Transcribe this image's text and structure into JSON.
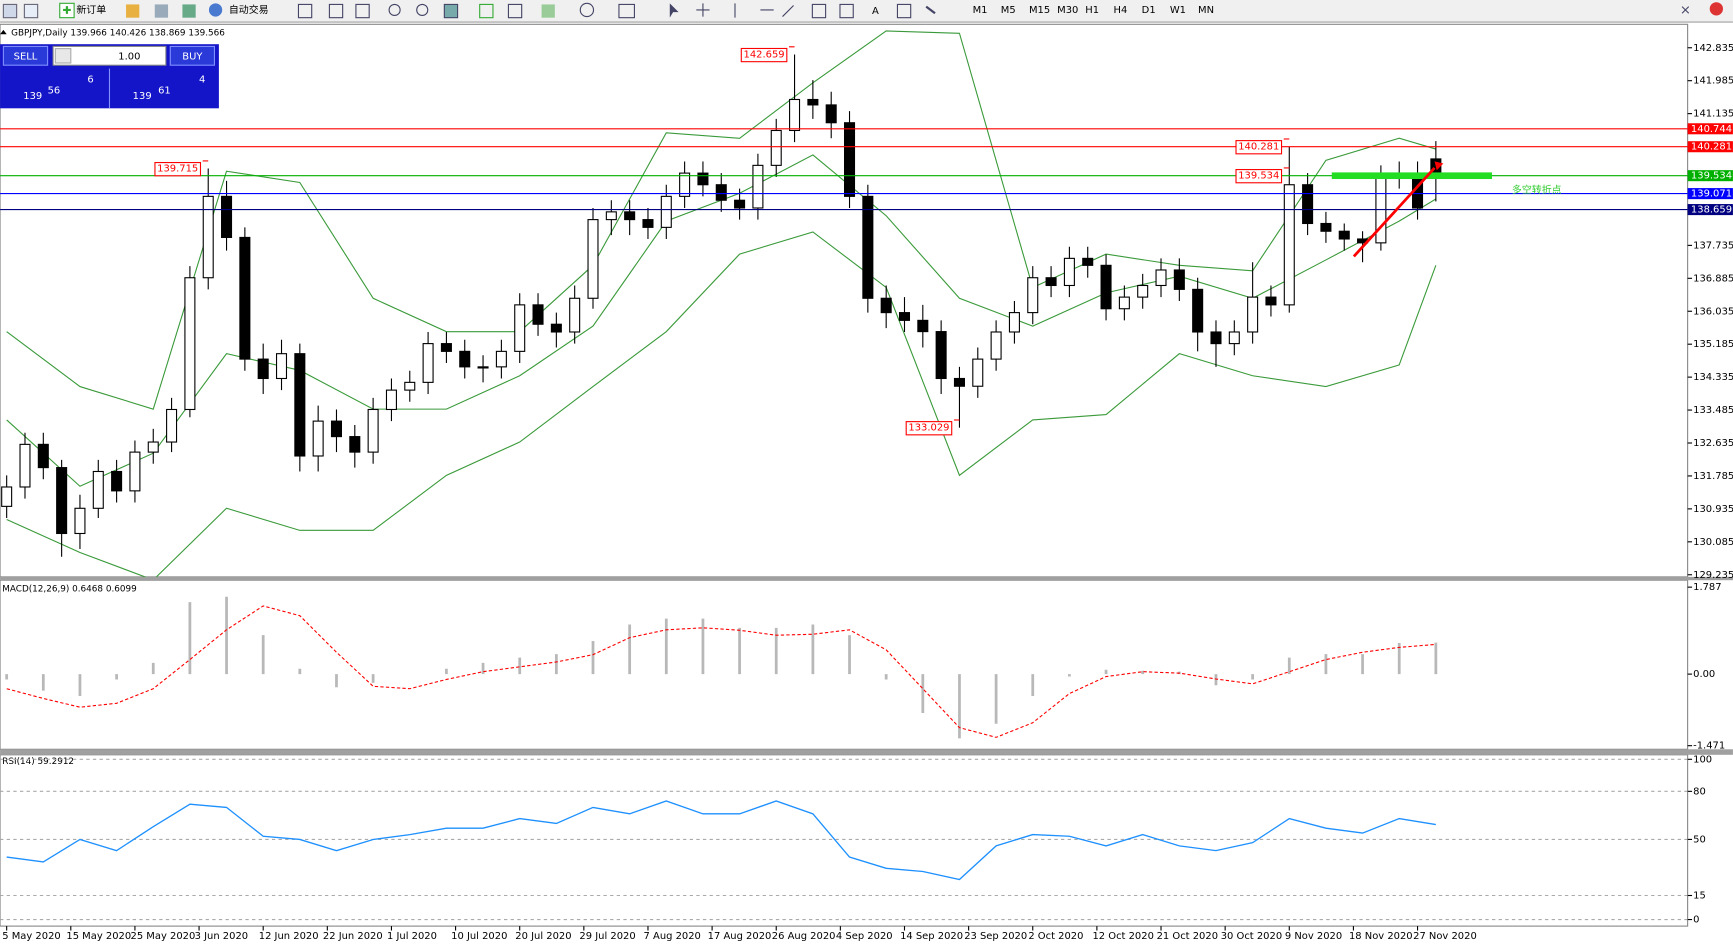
{
  "toolbar": {
    "buttons": [
      "新订单",
      "自动交易"
    ],
    "timeframes": [
      "M1",
      "M5",
      "M15",
      "M30",
      "H1",
      "H4",
      "D1",
      "W1",
      "MN"
    ]
  },
  "trade_panel": {
    "sell": "SELL",
    "lots": "1.00",
    "buy": "BUY",
    "bid": {
      "big": "139",
      "main": "56",
      "pip": "6"
    },
    "ask": {
      "big": "139",
      "main": "61",
      "pip": "4"
    }
  },
  "chart_data": [
    {
      "type": "candlestick",
      "title": "GBPJPY,Daily 139.966 140.426 138.869 139.566",
      "x": [
        0,
        1,
        2,
        3,
        4,
        5,
        6,
        7,
        8,
        9,
        10,
        11,
        12,
        13,
        14,
        15,
        16,
        17,
        18,
        19,
        20,
        21,
        22,
        23,
        24,
        25,
        26,
        27,
        28,
        29,
        30,
        31,
        32,
        33,
        34,
        35,
        36,
        37,
        38,
        39,
        40,
        41,
        42,
        43,
        44,
        45,
        46,
        47,
        48,
        49,
        50,
        51,
        52,
        53,
        54,
        55,
        56,
        57,
        58,
        59,
        60,
        61,
        62,
        63,
        64,
        65,
        66,
        67,
        68,
        69,
        70,
        71,
        72,
        73,
        74,
        75,
        76,
        77,
        78
      ],
      "open": [
        131.0,
        131.5,
        132.6,
        132.0,
        130.3,
        130.95,
        131.9,
        131.4,
        132.4,
        132.66,
        133.5,
        136.9,
        139.0,
        137.94,
        134.8,
        134.3,
        134.94,
        132.3,
        133.2,
        132.8,
        132.4,
        133.5,
        134.0,
        134.2,
        135.2,
        135.0,
        134.6,
        134.6,
        135.0,
        136.2,
        135.7,
        135.5,
        136.37,
        138.4,
        138.6,
        138.4,
        138.2,
        139.0,
        139.6,
        139.3,
        138.9,
        138.7,
        139.8,
        140.7,
        141.5,
        141.36,
        140.9,
        139.0,
        136.37,
        136.0,
        135.8,
        135.51,
        134.3,
        134.1,
        134.8,
        135.5,
        136.0,
        136.9,
        136.7,
        137.4,
        137.22,
        136.1,
        136.4,
        136.7,
        137.1,
        136.6,
        135.5,
        135.2,
        135.5,
        136.4,
        136.2,
        139.3,
        138.3,
        138.1,
        137.9,
        137.8,
        139.5,
        139.6,
        139.966
      ],
      "high": [
        131.8,
        132.9,
        132.9,
        132.2,
        131.3,
        132.2,
        132.2,
        132.7,
        133.0,
        133.8,
        137.2,
        139.72,
        139.4,
        138.2,
        135.2,
        135.3,
        135.2,
        133.6,
        133.5,
        133.1,
        133.8,
        134.3,
        134.5,
        135.5,
        135.5,
        135.3,
        134.9,
        135.3,
        136.5,
        136.5,
        136.0,
        136.7,
        138.7,
        138.9,
        138.9,
        138.7,
        139.3,
        139.9,
        139.9,
        139.6,
        139.2,
        140.1,
        141.0,
        142.66,
        142.0,
        141.7,
        141.2,
        139.3,
        136.7,
        136.4,
        136.2,
        135.8,
        134.6,
        135.1,
        135.8,
        136.3,
        137.2,
        137.2,
        137.7,
        137.7,
        137.5,
        136.7,
        137.0,
        137.4,
        137.4,
        136.9,
        135.8,
        135.8,
        137.3,
        136.7,
        140.28,
        139.6,
        138.6,
        138.3,
        138.1,
        139.8,
        139.9,
        139.9,
        140.426
      ],
      "low": [
        130.7,
        131.2,
        131.7,
        129.7,
        129.9,
        130.7,
        131.1,
        131.1,
        132.1,
        132.4,
        133.3,
        136.6,
        137.6,
        134.5,
        133.9,
        134.0,
        131.9,
        131.9,
        132.4,
        132.0,
        132.1,
        133.2,
        133.7,
        133.9,
        134.7,
        134.3,
        134.2,
        134.3,
        134.7,
        135.4,
        135.1,
        135.2,
        136.1,
        138.0,
        138.0,
        137.9,
        137.9,
        138.7,
        139.0,
        138.6,
        138.4,
        138.4,
        139.5,
        140.4,
        141.0,
        140.5,
        138.7,
        136.0,
        135.6,
        135.5,
        135.1,
        133.9,
        133.03,
        133.8,
        134.5,
        135.2,
        135.7,
        136.4,
        136.4,
        136.9,
        135.8,
        135.8,
        136.1,
        136.4,
        136.3,
        135.0,
        134.6,
        134.9,
        135.2,
        135.9,
        136.0,
        138.0,
        137.8,
        137.6,
        137.3,
        137.6,
        139.2,
        138.4,
        138.869
      ],
      "close": [
        131.5,
        132.6,
        132.0,
        130.3,
        130.95,
        131.9,
        131.4,
        132.4,
        132.66,
        133.5,
        136.9,
        139.0,
        137.94,
        134.8,
        134.3,
        134.94,
        132.3,
        133.2,
        132.8,
        132.4,
        133.5,
        134.0,
        134.2,
        135.2,
        135.0,
        134.6,
        134.6,
        135.0,
        136.2,
        135.7,
        135.5,
        136.37,
        138.4,
        138.6,
        138.4,
        138.2,
        139.0,
        139.6,
        139.3,
        138.9,
        138.7,
        139.8,
        140.7,
        141.5,
        141.36,
        140.9,
        139.0,
        136.37,
        136.0,
        135.8,
        135.51,
        134.3,
        134.1,
        134.8,
        135.5,
        136.0,
        136.9,
        136.7,
        137.4,
        137.22,
        136.1,
        136.4,
        136.7,
        137.1,
        136.6,
        135.5,
        135.2,
        135.5,
        136.4,
        136.2,
        139.3,
        138.3,
        138.1,
        137.9,
        137.8,
        139.5,
        139.6,
        138.7,
        139.566
      ],
      "up_color": "#ffffff",
      "down_color": "#000000",
      "xlim": [
        -0.36,
        91.74
      ],
      "ylim": [
        129.18,
        143.44
      ],
      "yticks": [
        142.835,
        141.985,
        141.135,
        137.735,
        136.885,
        136.035,
        135.185,
        134.335,
        133.485,
        132.635,
        131.785,
        130.935,
        130.085,
        129.235
      ],
      "bands": [
        {
          "color": "#3a9a3a",
          "x": [
            0,
            4,
            8,
            12,
            16,
            20,
            24,
            28,
            32,
            36,
            40,
            44,
            48,
            52,
            56,
            60,
            64,
            68,
            72,
            76,
            78
          ],
          "values": [
            135.51,
            134.09,
            133.51,
            139.65,
            139.36,
            136.37,
            135.51,
            135.51,
            137.22,
            140.64,
            140.5,
            141.93,
            143.27,
            143.21,
            136.65,
            137.51,
            137.22,
            137.08,
            139.93,
            140.5,
            140.22
          ]
        },
        {
          "color": "#3a9a3a",
          "x": [
            0,
            4,
            8,
            12,
            16,
            20,
            24,
            28,
            32,
            36,
            40,
            44,
            48,
            52,
            56,
            60,
            64,
            68,
            72,
            76,
            78
          ],
          "values": [
            133.23,
            131.52,
            132.37,
            134.94,
            134.51,
            133.51,
            133.51,
            134.37,
            135.65,
            138.36,
            139.08,
            140.07,
            138.5,
            136.37,
            135.65,
            136.51,
            136.94,
            136.37,
            137.36,
            138.36,
            138.93
          ]
        },
        {
          "color": "#3a9a3a",
          "x": [
            0,
            4,
            8,
            12,
            16,
            20,
            24,
            28,
            32,
            36,
            40,
            44,
            48,
            52,
            56,
            60,
            64,
            68,
            72,
            76,
            78
          ],
          "values": [
            130.66,
            129.81,
            129.1,
            130.95,
            130.38,
            130.38,
            131.8,
            132.66,
            134.09,
            135.51,
            137.51,
            138.08,
            136.65,
            131.8,
            133.23,
            133.37,
            134.94,
            134.37,
            134.09,
            134.65,
            137.22
          ]
        }
      ],
      "hlines": [
        {
          "value": 140.744,
          "color": "#ff0000"
        },
        {
          "value": 140.281,
          "color": "#ff0000"
        },
        {
          "value": 139.534,
          "color": "#00b000"
        },
        {
          "value": 139.071,
          "color": "#0000ff"
        },
        {
          "value": 138.659,
          "color": "#000080"
        }
      ],
      "annotations": [
        {
          "x": 43,
          "value": 142.659
        },
        {
          "x": 11,
          "value": 139.715
        },
        {
          "x": 70,
          "value": 140.281
        },
        {
          "x": 70,
          "value": 139.534
        },
        {
          "x": 52,
          "value": 133.029
        }
      ],
      "note": {
        "text": "多空转折点",
        "color": "#33cc33"
      }
    },
    {
      "type": "macd",
      "title": "MACD(12,26,9) 0.6468 0.6099",
      "x": [
        0,
        2,
        4,
        6,
        8,
        10,
        12,
        14,
        16,
        18,
        20,
        22,
        24,
        26,
        28,
        30,
        32,
        34,
        36,
        38,
        40,
        42,
        44,
        46,
        48,
        50,
        52,
        54,
        56,
        58,
        60,
        62,
        64,
        66,
        68,
        70,
        72,
        74,
        76,
        78
      ],
      "xlim": [
        -0.36,
        91.74
      ],
      "ylim": [
        -1.545,
        1.93
      ],
      "yticks": [
        1.787,
        {
          "value": 0,
          "label": "0.00"
        },
        -1.471
      ],
      "series": [
        {
          "type": "bar",
          "color": "#b8b8b8",
          "values": [
            -0.11,
            -0.34,
            -0.45,
            -0.11,
            0.23,
            1.48,
            1.59,
            0.8,
            0.11,
            -0.27,
            -0.18,
            0,
            0.11,
            0.23,
            0.34,
            0.41,
            0.68,
            1.02,
            1.14,
            1.14,
            0.95,
            0.95,
            1.02,
            0.8,
            -0.11,
            -0.8,
            -1.32,
            -1.02,
            -0.45,
            -0.05,
            0.09,
            0.07,
            0.05,
            -0.23,
            -0.11,
            0.34,
            0.41,
            0.41,
            0.64,
            0.6468
          ]
        },
        {
          "type": "line",
          "color": "#ff0000",
          "dashed": true,
          "values": [
            -0.3,
            -0.5,
            -0.68,
            -0.6,
            -0.3,
            0.3,
            0.91,
            1.4,
            1.2,
            0.45,
            -0.25,
            -0.3,
            -0.11,
            0.05,
            0.15,
            0.25,
            0.4,
            0.75,
            0.91,
            0.95,
            0.9,
            0.8,
            0.82,
            0.91,
            0.5,
            -0.3,
            -1.1,
            -1.3,
            -1.0,
            -0.4,
            -0.05,
            0.05,
            0.02,
            -0.1,
            -0.2,
            0.05,
            0.3,
            0.45,
            0.55,
            0.6099
          ]
        }
      ]
    },
    {
      "type": "line",
      "title": "RSI(14) 59.2912",
      "x": [
        0,
        2,
        4,
        6,
        8,
        10,
        12,
        14,
        16,
        18,
        20,
        22,
        24,
        26,
        28,
        30,
        32,
        34,
        36,
        38,
        40,
        42,
        44,
        46,
        48,
        50,
        52,
        54,
        56,
        58,
        60,
        62,
        64,
        66,
        68,
        70,
        72,
        74,
        76,
        78
      ],
      "xlim": [
        -0.36,
        91.74
      ],
      "ylim": [
        -4.1,
        102.8
      ],
      "yticks": [
        100,
        80,
        50,
        15,
        0
      ],
      "grid": true,
      "series": [
        {
          "color": "#1e90ff",
          "values": [
            39,
            36,
            50,
            43,
            58,
            72,
            70,
            52,
            50,
            43,
            50,
            53,
            57,
            57,
            63,
            60,
            70,
            66,
            74,
            66,
            66,
            74,
            66,
            39,
            32,
            30,
            25,
            46,
            53,
            52,
            46,
            53,
            46,
            43,
            48,
            63,
            57,
            54,
            63,
            59.2912
          ]
        }
      ],
      "xticks": [
        {
          "value": 0,
          "label": "5 May 2020"
        },
        {
          "value": 3.5,
          "label": "15 May 2020"
        },
        {
          "value": 7,
          "label": "25 May 2020"
        },
        {
          "value": 10.5,
          "label": "3 Jun 2020"
        },
        {
          "value": 14,
          "label": "12 Jun 2020"
        },
        {
          "value": 17.5,
          "label": "22 Jun 2020"
        },
        {
          "value": 21,
          "label": "1 Jul 2020"
        },
        {
          "value": 24.5,
          "label": "10 Jul 2020"
        },
        {
          "value": 28,
          "label": "20 Jul 2020"
        },
        {
          "value": 31.5,
          "label": "29 Jul 2020"
        },
        {
          "value": 35,
          "label": "7 Aug 2020"
        },
        {
          "value": 38.5,
          "label": "17 Aug 2020"
        },
        {
          "value": 42,
          "label": "26 Aug 2020"
        },
        {
          "value": 45.5,
          "label": "4 Sep 2020"
        },
        {
          "value": 49,
          "label": "14 Sep 2020"
        },
        {
          "value": 52.5,
          "label": "23 Sep 2020"
        },
        {
          "value": 56,
          "label": "2 Oct 2020"
        },
        {
          "value": 59.5,
          "label": "12 Oct 2020"
        },
        {
          "value": 63,
          "label": "21 Oct 2020"
        },
        {
          "value": 66.5,
          "label": "30 Oct 2020"
        },
        {
          "value": 70,
          "label": "9 Nov 2020"
        },
        {
          "value": 73.5,
          "label": "18 Nov 2020"
        },
        {
          "value": 77,
          "label": "27 Nov 2020"
        }
      ]
    }
  ]
}
